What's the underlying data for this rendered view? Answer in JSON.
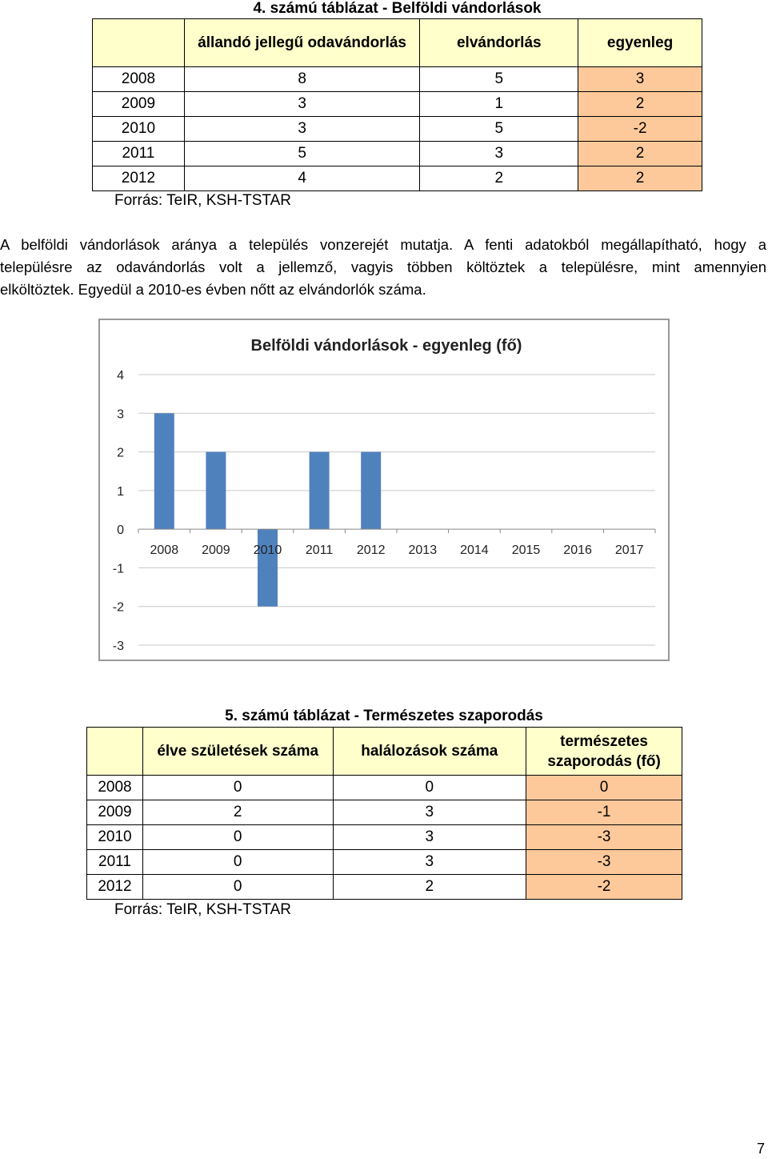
{
  "table4": {
    "caption": "4. számú táblázat - Belföldi vándorlások",
    "headers": [
      "állandó jellegű odavándorlás",
      "elvándorlás",
      "egyenleg"
    ],
    "rows": [
      {
        "year": "2008",
        "in": "8",
        "out": "5",
        "balance": "3"
      },
      {
        "year": "2009",
        "in": "3",
        "out": "1",
        "balance": "2"
      },
      {
        "year": "2010",
        "in": "3",
        "out": "5",
        "balance": "-2"
      },
      {
        "year": "2011",
        "in": "5",
        "out": "3",
        "balance": "2"
      },
      {
        "year": "2012",
        "in": "4",
        "out": "2",
        "balance": "2"
      }
    ],
    "source": "Forrás: TeIR, KSH-TSTAR"
  },
  "paragraph": {
    "lines": [
      "A belföldi vándorlások aránya a település vonzerejét mutatja. A fenti adatokból megállapítható, hogy a",
      "településre az odavándorlás volt a jellemző, vagyis többen költöztek a településre, mint amennyien",
      "elköltöztek. Egyedül a 2010-es évben nőtt az elvándorlók száma."
    ]
  },
  "chart_data": {
    "type": "bar",
    "title": "Belföldi vándorlások  - egyenleg (fő)",
    "categories": [
      "2008",
      "2009",
      "2010",
      "2011",
      "2012",
      "2013",
      "2014",
      "2015",
      "2016",
      "2017"
    ],
    "values": [
      3,
      2,
      -2,
      2,
      2,
      null,
      null,
      null,
      null,
      null
    ],
    "ylim": [
      -3,
      4
    ],
    "yticks": [
      4,
      3,
      2,
      1,
      0,
      -1,
      -2,
      -3
    ],
    "xlabel": "",
    "ylabel": "",
    "bar_color": "#4f81bd",
    "grid": "horizontal"
  },
  "table5": {
    "caption": "5. számú táblázat - Természetes szaporodás",
    "headers": [
      "élve születések száma",
      "halálozások száma",
      "természetes szaporodás (fő)"
    ],
    "rows": [
      {
        "year": "2008",
        "births": "0",
        "deaths": "0",
        "natural": "0"
      },
      {
        "year": "2009",
        "births": "2",
        "deaths": "3",
        "natural": "-1"
      },
      {
        "year": "2010",
        "births": "0",
        "deaths": "3",
        "natural": "-3"
      },
      {
        "year": "2011",
        "births": "0",
        "deaths": "3",
        "natural": "-3"
      },
      {
        "year": "2012",
        "births": "0",
        "deaths": "2",
        "natural": "-2"
      }
    ],
    "source": "Forrás: TeIR, KSH-TSTAR"
  },
  "page_number": "7"
}
